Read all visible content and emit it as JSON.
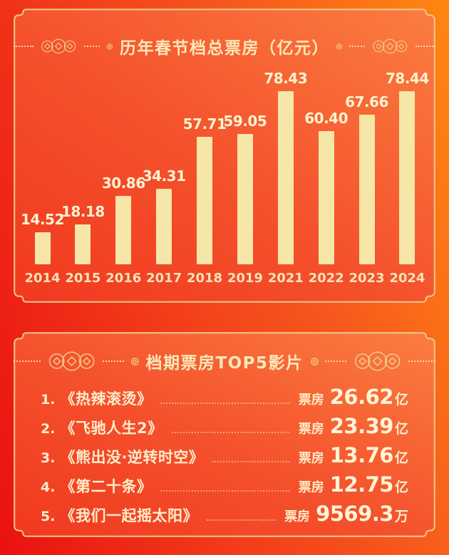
{
  "chart_panel": {
    "title": "历年春节档总票房（亿元）"
  },
  "top5_panel": {
    "title": "档期票房TOP5影片",
    "items": [
      {
        "rank": "1.",
        "title": "《热辣滚烫》",
        "label": "票房",
        "amount": "26.62",
        "unit": "亿"
      },
      {
        "rank": "2.",
        "title": "《飞驰人生2》",
        "label": "票房",
        "amount": "23.39",
        "unit": "亿"
      },
      {
        "rank": "3.",
        "title": "《熊出没·逆转时空》",
        "label": "票房",
        "amount": "13.76",
        "unit": "亿"
      },
      {
        "rank": "4.",
        "title": "《第二十条》",
        "label": "票房",
        "amount": "12.75",
        "unit": "亿"
      },
      {
        "rank": "5.",
        "title": "《我们一起摇太阳》",
        "label": "票房",
        "amount": "9569.3",
        "unit": "万"
      }
    ]
  },
  "chart_data": {
    "type": "bar",
    "title": "历年春节档总票房（亿元）",
    "categories": [
      "2014",
      "2015",
      "2016",
      "2017",
      "2018",
      "2019",
      "2021",
      "2022",
      "2023",
      "2024"
    ],
    "values": [
      14.52,
      18.18,
      30.86,
      34.31,
      57.71,
      59.05,
      78.43,
      60.4,
      67.66,
      78.44
    ],
    "value_labels": [
      "14.52",
      "18.18",
      "30.86",
      "34.31",
      "57.71",
      "59.05",
      "78.43",
      "60.40",
      "67.66",
      "78.44"
    ],
    "xlabel": "",
    "ylabel": "亿元",
    "ylim": [
      0,
      85
    ],
    "grid": false,
    "legend": false
  },
  "colors": {
    "background_left": "#ea1110",
    "background_right": "#ff8711",
    "panel_fill_red": "#f1391f",
    "panel_fill_orange": "#fb7d40",
    "panel_border_gold": "#eec98e",
    "bar_fill": "#f6e7a8",
    "title_gold": "#fce8b8",
    "value_cream": "#fff3cf"
  }
}
